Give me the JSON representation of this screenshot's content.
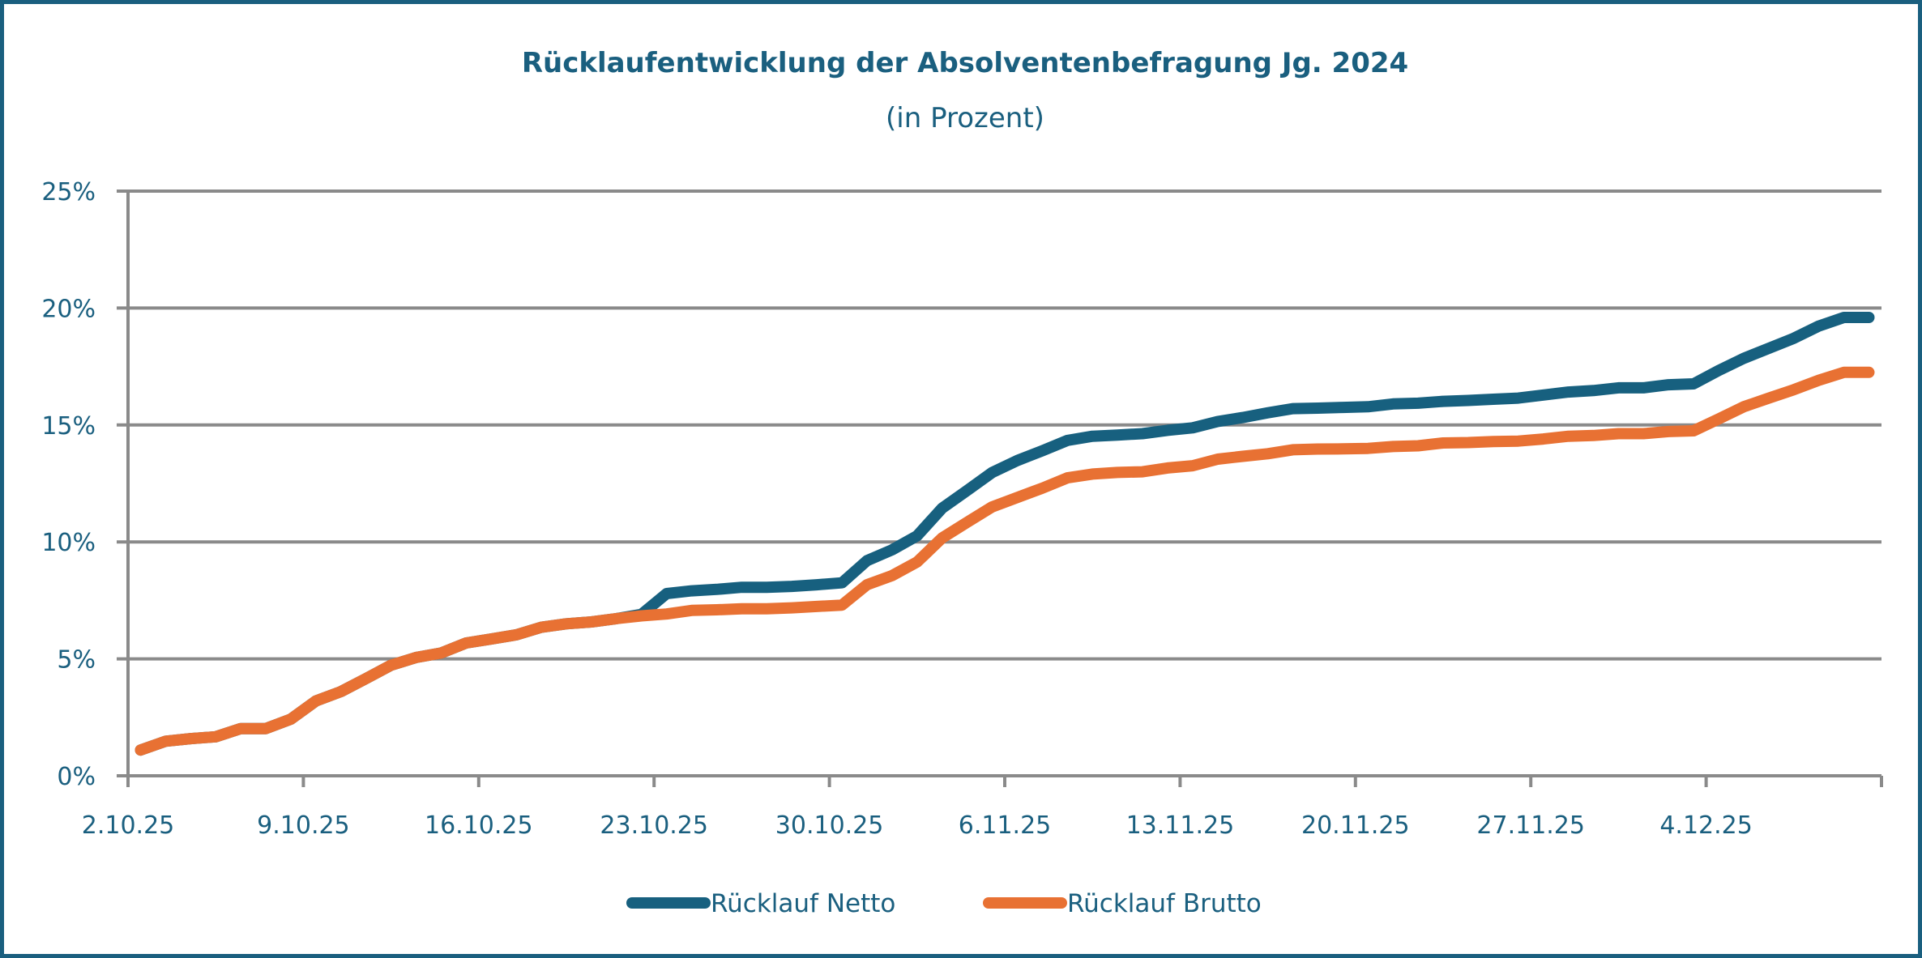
{
  "chart_data": {
    "type": "line",
    "title": "Rücklaufentwicklung der Absolventenbefragung Jg. 2024",
    "subtitle": "(in Prozent)",
    "xlabel": "",
    "ylabel": "",
    "ylim": [
      0,
      25
    ],
    "y_tick_labels": [
      "0%",
      "5%",
      "10%",
      "15%",
      "20%",
      "25%"
    ],
    "y_ticks": [
      0,
      5,
      10,
      15,
      20,
      25
    ],
    "x_tick_labels": [
      "2.10.25",
      "9.10.25",
      "16.10.25",
      "23.10.25",
      "30.10.25",
      "6.11.25",
      "13.11.25",
      "20.11.25",
      "27.11.25",
      "4.12.25"
    ],
    "grid": "horizontal",
    "legend_position": "bottom",
    "x": [
      "2.10.25",
      "3.10.25",
      "4.10.25",
      "5.10.25",
      "6.10.25",
      "7.10.25",
      "8.10.25",
      "9.10.25",
      "10.10.25",
      "11.10.25",
      "12.10.25",
      "13.10.25",
      "14.10.25",
      "15.10.25",
      "16.10.25",
      "17.10.25",
      "18.10.25",
      "19.10.25",
      "20.10.25",
      "21.10.25",
      "22.10.25",
      "23.10.25",
      "24.10.25",
      "25.10.25",
      "26.10.25",
      "27.10.25",
      "28.10.25",
      "29.10.25",
      "30.10.25",
      "31.10.25",
      "1.11.25",
      "2.11.25",
      "3.11.25",
      "4.11.25",
      "5.11.25",
      "6.11.25",
      "7.11.25",
      "8.11.25",
      "9.11.25",
      "10.11.25",
      "11.11.25",
      "12.11.25",
      "13.11.25",
      "14.11.25",
      "15.11.25",
      "16.11.25",
      "17.11.25",
      "18.11.25",
      "19.11.25",
      "20.11.25",
      "21.11.25",
      "22.11.25",
      "23.11.25",
      "24.11.25",
      "25.11.25",
      "26.11.25",
      "27.11.25",
      "28.11.25",
      "29.11.25",
      "30.11.25",
      "1.12.25",
      "2.12.25",
      "3.12.25",
      "4.12.25",
      "5.12.25",
      "6.12.25",
      "7.12.25",
      "8.12.25",
      "9.12.25",
      "10.12.25"
    ],
    "series": [
      {
        "name": "Rücklauf Netto",
        "color": "#17607f",
        "values": [
          1.1,
          1.48,
          1.59,
          1.67,
          2.02,
          2.02,
          2.42,
          3.2,
          3.6,
          4.16,
          4.73,
          5.06,
          5.25,
          5.68,
          5.85,
          6.03,
          6.35,
          6.5,
          6.58,
          6.72,
          6.9,
          7.79,
          7.91,
          7.97,
          8.06,
          8.06,
          8.1,
          8.17,
          8.25,
          9.2,
          9.66,
          10.26,
          11.44,
          12.2,
          12.97,
          13.48,
          13.9,
          14.34,
          14.52,
          14.57,
          14.63,
          14.77,
          14.88,
          15.15,
          15.32,
          15.52,
          15.7,
          15.72,
          15.75,
          15.78,
          15.9,
          15.93,
          16.01,
          16.05,
          16.1,
          16.15,
          16.28,
          16.41,
          16.47,
          16.59,
          16.59,
          16.72,
          16.76,
          17.33,
          17.85,
          18.28,
          18.71,
          19.23,
          19.6,
          19.6
        ]
      },
      {
        "name": "Rücklauf Brutto",
        "color": "#e87133",
        "values": [
          1.1,
          1.48,
          1.59,
          1.67,
          2.02,
          2.02,
          2.42,
          3.2,
          3.6,
          4.16,
          4.73,
          5.06,
          5.25,
          5.68,
          5.85,
          6.03,
          6.35,
          6.5,
          6.58,
          6.72,
          6.84,
          6.92,
          7.07,
          7.1,
          7.14,
          7.14,
          7.18,
          7.24,
          7.3,
          8.17,
          8.56,
          9.14,
          10.17,
          10.84,
          11.5,
          11.9,
          12.3,
          12.74,
          12.9,
          12.97,
          13.0,
          13.16,
          13.26,
          13.54,
          13.66,
          13.77,
          13.94,
          13.97,
          13.98,
          14.0,
          14.08,
          14.11,
          14.23,
          14.25,
          14.29,
          14.31,
          14.4,
          14.52,
          14.55,
          14.63,
          14.63,
          14.72,
          14.75,
          15.26,
          15.78,
          16.15,
          16.51,
          16.91,
          17.25,
          17.25
        ]
      }
    ]
  }
}
